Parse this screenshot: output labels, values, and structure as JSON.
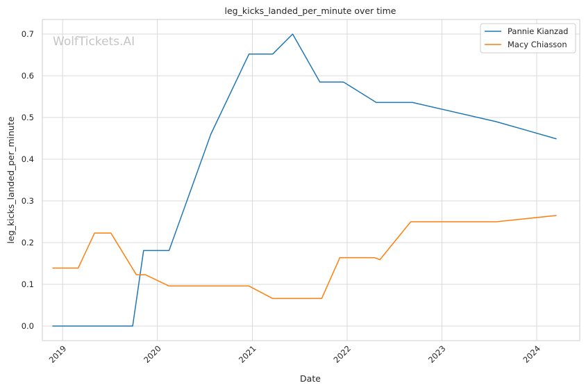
{
  "chart_data": {
    "type": "line",
    "title": "leg_kicks_landed_per_minute over time",
    "xlabel": "Date",
    "ylabel": "leg_kicks_landed_per_minute",
    "watermark": "WolfTickets.AI",
    "x_ticks": [
      "2019",
      "2020",
      "2021",
      "2022",
      "2023",
      "2024"
    ],
    "y_ticks": [
      "0.0",
      "0.1",
      "0.2",
      "0.3",
      "0.4",
      "0.5",
      "0.6",
      "0.7"
    ],
    "xlim": [
      "2018-10-15",
      "2024-06-15"
    ],
    "ylim": [
      -0.035,
      0.735
    ],
    "grid": true,
    "legend_position": "top-right",
    "series": [
      {
        "name": "Pannie Kianzad",
        "color": "#1f77b4",
        "points": [
          {
            "x": "2018-11-24",
            "y": 0.0
          },
          {
            "x": "2019-09-28",
            "y": 0.0
          },
          {
            "x": "2019-11-09",
            "y": 0.181
          },
          {
            "x": "2020-02-15",
            "y": 0.181
          },
          {
            "x": "2020-07-25",
            "y": 0.46
          },
          {
            "x": "2020-12-19",
            "y": 0.652
          },
          {
            "x": "2021-03-20",
            "y": 0.652
          },
          {
            "x": "2021-06-05",
            "y": 0.7
          },
          {
            "x": "2021-09-18",
            "y": 0.585
          },
          {
            "x": "2021-12-18",
            "y": 0.585
          },
          {
            "x": "2022-04-23",
            "y": 0.536
          },
          {
            "x": "2022-09-10",
            "y": 0.536
          },
          {
            "x": "2023-07-29",
            "y": 0.49
          },
          {
            "x": "2024-03-16",
            "y": 0.449
          }
        ]
      },
      {
        "name": "Macy Chiasson",
        "color": "#ff7f0e",
        "points": [
          {
            "x": "2018-11-24",
            "y": 0.139
          },
          {
            "x": "2019-03-02",
            "y": 0.139
          },
          {
            "x": "2019-05-04",
            "y": 0.223
          },
          {
            "x": "2019-07-06",
            "y": 0.223
          },
          {
            "x": "2019-10-12",
            "y": 0.123
          },
          {
            "x": "2019-11-16",
            "y": 0.123
          },
          {
            "x": "2020-02-15",
            "y": 0.096
          },
          {
            "x": "2020-12-19",
            "y": 0.096
          },
          {
            "x": "2021-03-20",
            "y": 0.066
          },
          {
            "x": "2021-09-25",
            "y": 0.066
          },
          {
            "x": "2021-12-04",
            "y": 0.164
          },
          {
            "x": "2022-04-16",
            "y": 0.164
          },
          {
            "x": "2022-05-07",
            "y": 0.159
          },
          {
            "x": "2022-09-03",
            "y": 0.25
          },
          {
            "x": "2023-07-29",
            "y": 0.25
          },
          {
            "x": "2024-03-16",
            "y": 0.265
          }
        ]
      }
    ]
  }
}
